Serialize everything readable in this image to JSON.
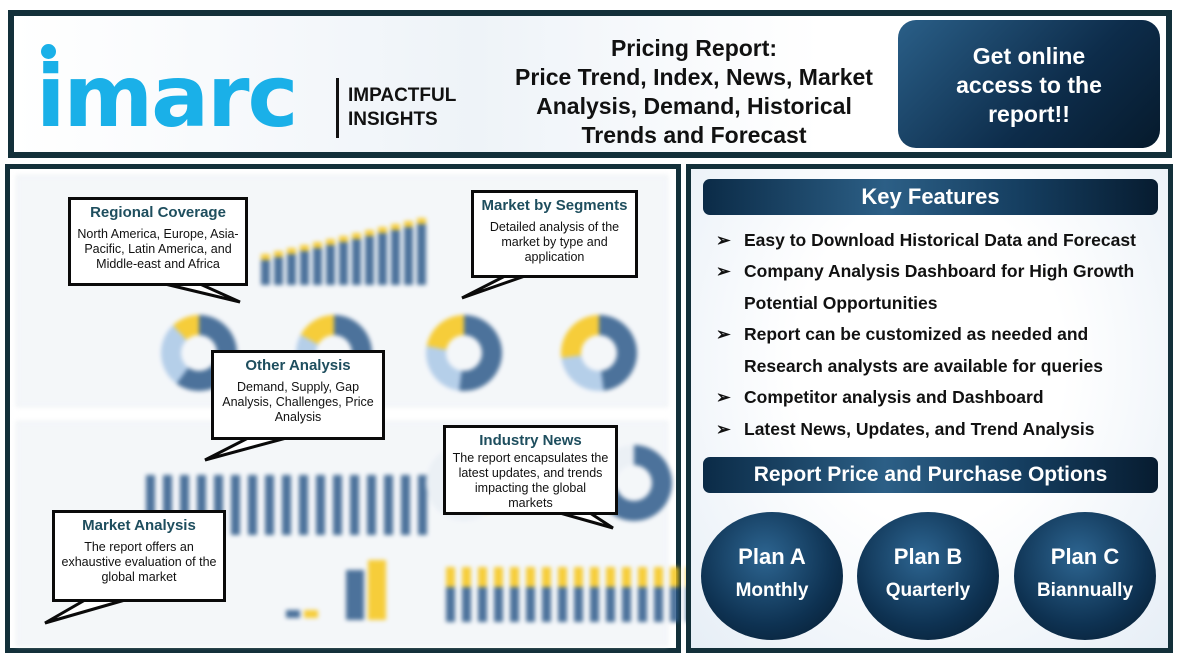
{
  "header": {
    "logo_text": "imarc",
    "tagline": [
      "IMPACTFUL",
      "INSIGHTS"
    ],
    "title_lines": [
      "Pricing Report:",
      "Price Trend, Index, News, Market",
      "Analysis, Demand, Historical",
      "Trends and Forecast"
    ],
    "cta_lines": [
      "Get online",
      "access to the",
      "report!!"
    ]
  },
  "callouts": [
    {
      "title": "Regional Coverage",
      "text": "North America, Europe, Asia-Pacific, Latin America, and Middle-east and Africa"
    },
    {
      "title": "Market by Segments",
      "text": "Detailed analysis of the market by type and application"
    },
    {
      "title": "Other Analysis",
      "text": "Demand, Supply, Gap Analysis, Challenges, Price Analysis"
    },
    {
      "title": "Industry News",
      "text": "The report encapsulates the latest updates, and trends impacting the global markets"
    },
    {
      "title": "Market Analysis",
      "text": "The report offers an exhaustive evaluation of the global market"
    }
  ],
  "key_features": {
    "title": "Key Features",
    "bullet_icon": "arrow-right-icon",
    "items": [
      {
        "line1": "Easy to Download Historical Data and Forecast"
      },
      {
        "line1": "Company Analysis Dashboard for High Growth",
        "line2": "Potential Opportunities"
      },
      {
        "line1": "Report can be customized as needed and",
        "line2": "Research analysts are available for queries"
      },
      {
        "line1": "Competitor analysis and Dashboard"
      },
      {
        "line1": "Latest News, Updates, and Trend Analysis"
      }
    ]
  },
  "purchase": {
    "title": "Report Price and Purchase Options",
    "plans": [
      {
        "name": "Plan A",
        "period": "Monthly"
      },
      {
        "name": "Plan B",
        "period": "Quarterly"
      },
      {
        "name": "Plan C",
        "period": "Biannually"
      }
    ]
  },
  "colors": {
    "brand": "#1ab0e8",
    "frame": "#13303a",
    "callout_title": "#1e4e5e",
    "chart_blue": "#2d5a8a",
    "chart_yellow": "#f5c518"
  }
}
